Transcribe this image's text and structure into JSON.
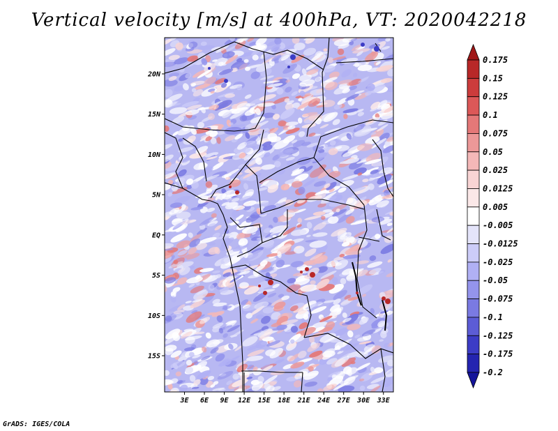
{
  "title": "Vertical velocity [m/s] at 400hPa, VT: 2020042218",
  "footer": "GrADS: IGES/COLA",
  "map": {
    "lat_labels": [
      "20N",
      "15N",
      "10N",
      "5N",
      "EQ",
      "5S",
      "10S",
      "15S"
    ],
    "lat_values": [
      20,
      15,
      10,
      5,
      0,
      -5,
      -10,
      -15
    ],
    "lon_labels": [
      "3E",
      "6E",
      "9E",
      "12E",
      "15E",
      "18E",
      "21E",
      "24E",
      "27E",
      "30E",
      "33E"
    ],
    "lon_values": [
      3,
      6,
      9,
      12,
      15,
      18,
      21,
      24,
      27,
      30,
      33
    ],
    "lat_range": [
      -19.5,
      24.5
    ],
    "lon_range": [
      0,
      34.5
    ]
  },
  "colorbar": {
    "labels": [
      "0.175",
      "0.15",
      "0.125",
      "0.1",
      "0.075",
      "0.05",
      "0.025",
      "0.0125",
      "0.005",
      "-0.005",
      "-0.0125",
      "-0.025",
      "-0.05",
      "-0.075",
      "-0.1",
      "-0.125",
      "-0.175",
      "-0.2"
    ],
    "colors": [
      "#a01818",
      "#b82828",
      "#cc3c3c",
      "#dc5858",
      "#e47878",
      "#ec9898",
      "#f4b8b8",
      "#f8d4d4",
      "#fbe8e8",
      "#ffffff",
      "#e4e4fa",
      "#ccccf8",
      "#b0b0f4",
      "#9494ec",
      "#7a7ae2",
      "#5c5cd6",
      "#3c3cc6",
      "#2424b0",
      "#14149a"
    ]
  }
}
